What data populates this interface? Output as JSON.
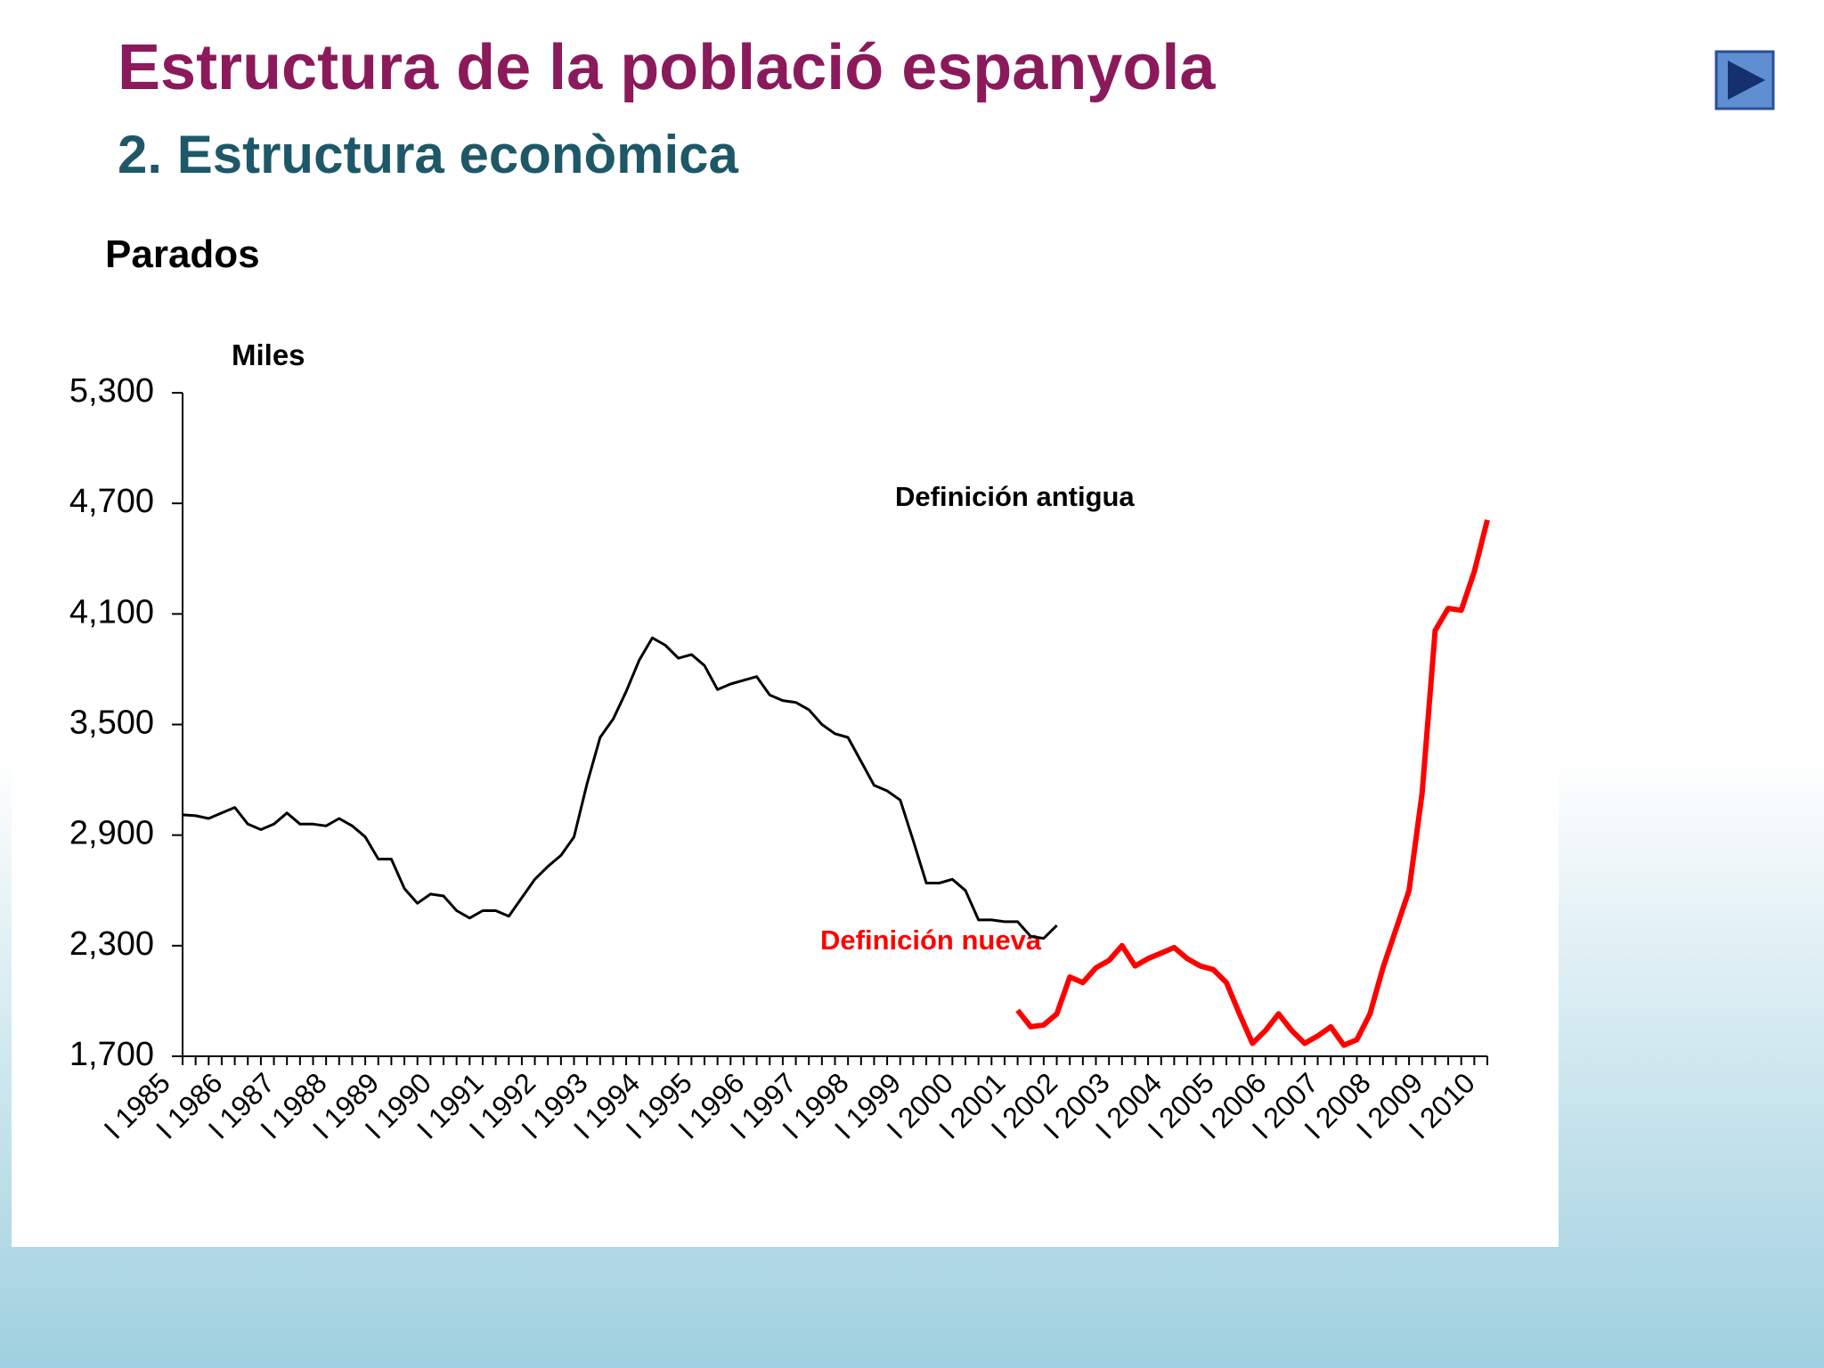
{
  "header": {
    "title": "Estructura de la població espanyola",
    "subtitle": "2. Estructura econòmica"
  },
  "chart_data": {
    "type": "line",
    "title": "Parados",
    "y_label": "Miles",
    "annotations": [
      "Definición antigua",
      "Definición nueva"
    ],
    "categories": [
      "I 1985",
      null,
      null,
      null,
      "I 1986",
      null,
      null,
      null,
      "I 1987",
      null,
      null,
      null,
      "I 1988",
      null,
      null,
      null,
      "I 1989",
      null,
      null,
      null,
      "I 1990",
      null,
      null,
      null,
      "I 1991",
      null,
      null,
      null,
      "I 1992",
      null,
      null,
      null,
      "I 1993",
      null,
      null,
      null,
      "I 1994",
      null,
      null,
      null,
      "I 1995",
      null,
      null,
      null,
      "I 1996",
      null,
      null,
      null,
      "I 1997",
      null,
      null,
      null,
      "I 1998",
      null,
      null,
      null,
      "I 1999",
      null,
      null,
      null,
      "I 2000",
      null,
      null,
      null,
      "I 2001",
      null,
      null,
      null,
      "I 2002",
      null,
      null,
      null,
      "I 2003",
      null,
      null,
      null,
      "I 2004",
      null,
      null,
      null,
      "I 2005",
      null,
      null,
      null,
      "I 2006",
      null,
      null,
      null,
      "I 2007",
      null,
      null,
      null,
      "I 2008",
      null,
      null,
      null,
      "I 2009",
      null,
      null,
      null,
      "I 2010"
    ],
    "series": [
      {
        "name": "Definición antigua",
        "color": "#000000",
        "values": [
          3010,
          3005,
          2990,
          3020,
          3050,
          2960,
          2930,
          2960,
          3020,
          2960,
          2960,
          2950,
          2990,
          2950,
          2890,
          2770,
          2770,
          2610,
          2530,
          2580,
          2570,
          2490,
          2450,
          2490,
          2490,
          2460,
          2560,
          2660,
          2730,
          2790,
          2890,
          3180,
          3430,
          3530,
          3680,
          3850,
          3970,
          3930,
          3860,
          3880,
          3820,
          3690,
          3720,
          3740,
          3760,
          3660,
          3630,
          3620,
          3580,
          3500,
          3450,
          3430,
          3300,
          3170,
          3140,
          3090,
          2870,
          2640,
          2640,
          2660,
          2600,
          2440,
          2440,
          2430,
          2430,
          2350,
          2340,
          2410,
          null,
          null,
          null,
          null,
          null,
          null,
          null,
          null,
          null,
          null,
          null,
          null,
          null,
          null,
          null,
          null,
          null,
          null,
          null,
          null,
          null,
          null,
          null,
          null,
          null,
          null,
          null,
          null,
          null,
          null,
          null,
          null,
          null
        ]
      },
      {
        "name": "Definición nueva",
        "color": "#ff0000",
        "values": [
          null,
          null,
          null,
          null,
          null,
          null,
          null,
          null,
          null,
          null,
          null,
          null,
          null,
          null,
          null,
          null,
          null,
          null,
          null,
          null,
          null,
          null,
          null,
          null,
          null,
          null,
          null,
          null,
          null,
          null,
          null,
          null,
          null,
          null,
          null,
          null,
          null,
          null,
          null,
          null,
          null,
          null,
          null,
          null,
          null,
          null,
          null,
          null,
          null,
          null,
          null,
          null,
          null,
          null,
          null,
          null,
          null,
          null,
          null,
          null,
          null,
          null,
          null,
          null,
          1950,
          1860,
          1870,
          1930,
          2130,
          2100,
          2180,
          2220,
          2300,
          2190,
          2230,
          2260,
          2290,
          2230,
          2190,
          2170,
          2100,
          1930,
          1770,
          1840,
          1930,
          1840,
          1770,
          1810,
          1860,
          1760,
          1790,
          1930,
          2180,
          2390,
          2600,
          3130,
          4010,
          4130,
          4120,
          4330,
          4610
        ]
      }
    ],
    "ylim": [
      1700,
      5300
    ],
    "yticks": [
      {
        "value": 1700,
        "label": "1,700"
      },
      {
        "value": 2300,
        "label": "2,300"
      },
      {
        "value": 2900,
        "label": "2,900"
      },
      {
        "value": 3500,
        "label": "3,500"
      },
      {
        "value": 4100,
        "label": "4,100"
      },
      {
        "value": 4700,
        "label": "4,700"
      },
      {
        "value": 5300,
        "label": "5,300"
      }
    ],
    "grid": false
  }
}
